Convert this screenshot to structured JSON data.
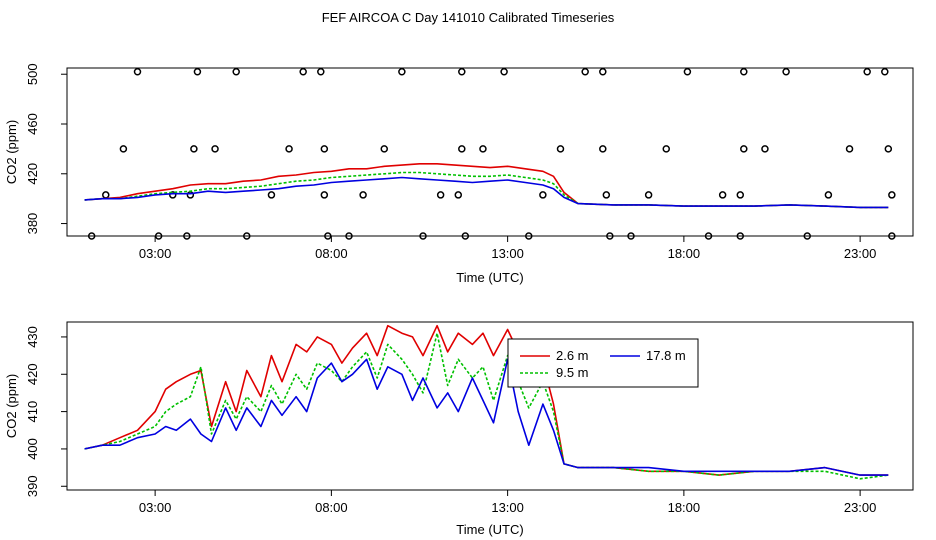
{
  "title": "FEF AIRCOA C  Day 141010  Calibrated Timeseries",
  "colors": {
    "s1": "#e00000",
    "s2": "#00c000",
    "s3": "#0000e0",
    "axis": "#000000",
    "marker": "#000000"
  },
  "chart_data": [
    {
      "type": "line",
      "xlabel": "Time (UTC)",
      "ylabel": "CO2 (ppm)",
      "xlim": [
        0.5,
        24.5
      ],
      "ylim": [
        370,
        505
      ],
      "x_ticks": [
        3,
        8,
        13,
        18,
        23
      ],
      "x_tick_labels": [
        "03:00",
        "08:00",
        "13:00",
        "18:00",
        "23:00"
      ],
      "y_ticks": [
        380,
        420,
        460,
        500
      ],
      "y_tick_labels": [
        "380",
        "420",
        "460",
        "500"
      ],
      "series": [
        {
          "name": "2.6 m",
          "color": "#e00000",
          "x": [
            1,
            1.5,
            2,
            2.5,
            3,
            3.5,
            4,
            4.5,
            5,
            5.5,
            6,
            6.5,
            7,
            7.5,
            8,
            8.5,
            9,
            9.5,
            10,
            10.5,
            11,
            11.5,
            12,
            12.5,
            13,
            13.5,
            14,
            14.3,
            14.6,
            15,
            16,
            17,
            18,
            19,
            20,
            21,
            22,
            23,
            23.8
          ],
          "y": [
            399,
            400,
            401,
            404,
            406,
            408,
            411,
            412,
            412,
            414,
            415,
            418,
            419,
            421,
            422,
            424,
            424,
            426,
            427,
            428,
            428,
            427,
            426,
            425,
            426,
            424,
            422,
            418,
            405,
            396,
            395,
            395,
            394,
            394,
            394,
            395,
            394,
            393,
            393
          ]
        },
        {
          "name": "9.5 m",
          "color": "#00c000",
          "x": [
            1,
            1.5,
            2,
            2.5,
            3,
            3.5,
            4,
            4.5,
            5,
            5.5,
            6,
            6.5,
            7,
            7.5,
            8,
            8.5,
            9,
            9.5,
            10,
            10.5,
            11,
            11.5,
            12,
            12.5,
            13,
            13.5,
            14,
            14.3,
            14.6,
            15,
            16,
            17,
            18,
            19,
            20,
            21,
            22,
            23,
            23.8
          ],
          "y": [
            399,
            400,
            400,
            402,
            404,
            405,
            406,
            408,
            408,
            409,
            410,
            412,
            414,
            415,
            417,
            418,
            419,
            420,
            421,
            421,
            420,
            419,
            418,
            418,
            419,
            417,
            415,
            412,
            403,
            396,
            395,
            395,
            394,
            394,
            394,
            395,
            394,
            393,
            393
          ]
        },
        {
          "name": "17.8 m",
          "color": "#0000e0",
          "x": [
            1,
            1.5,
            2,
            2.5,
            3,
            3.5,
            4,
            4.5,
            5,
            5.5,
            6,
            6.5,
            7,
            7.5,
            8,
            8.5,
            9,
            9.5,
            10,
            10.5,
            11,
            11.5,
            12,
            12.5,
            13,
            13.5,
            14,
            14.3,
            14.6,
            15,
            16,
            17,
            18,
            19,
            20,
            21,
            22,
            23,
            23.8
          ],
          "y": [
            399,
            400,
            400,
            401,
            403,
            404,
            404,
            406,
            405,
            406,
            407,
            408,
            410,
            411,
            413,
            414,
            415,
            416,
            417,
            416,
            415,
            414,
            413,
            414,
            415,
            413,
            411,
            408,
            401,
            396,
            395,
            395,
            394,
            394,
            394,
            395,
            394,
            393,
            393
          ]
        }
      ],
      "markers": [
        {
          "x": 1.2,
          "y": 370
        },
        {
          "x": 2.5,
          "y": 502
        },
        {
          "x": 2.1,
          "y": 440
        },
        {
          "x": 1.6,
          "y": 403
        },
        {
          "x": 3.1,
          "y": 370
        },
        {
          "x": 3.5,
          "y": 403
        },
        {
          "x": 4.2,
          "y": 502
        },
        {
          "x": 4.1,
          "y": 440
        },
        {
          "x": 4.0,
          "y": 403
        },
        {
          "x": 3.9,
          "y": 370
        },
        {
          "x": 4.7,
          "y": 440
        },
        {
          "x": 5.3,
          "y": 502
        },
        {
          "x": 5.6,
          "y": 370
        },
        {
          "x": 6.3,
          "y": 403
        },
        {
          "x": 6.8,
          "y": 440
        },
        {
          "x": 7.2,
          "y": 502
        },
        {
          "x": 7.7,
          "y": 502
        },
        {
          "x": 7.8,
          "y": 440
        },
        {
          "x": 7.8,
          "y": 403
        },
        {
          "x": 7.9,
          "y": 370
        },
        {
          "x": 8.5,
          "y": 370
        },
        {
          "x": 8.9,
          "y": 403
        },
        {
          "x": 9.5,
          "y": 440
        },
        {
          "x": 10.0,
          "y": 502
        },
        {
          "x": 10.6,
          "y": 370
        },
        {
          "x": 11.1,
          "y": 403
        },
        {
          "x": 11.6,
          "y": 403
        },
        {
          "x": 11.7,
          "y": 502
        },
        {
          "x": 11.7,
          "y": 440
        },
        {
          "x": 11.8,
          "y": 370
        },
        {
          "x": 12.3,
          "y": 440
        },
        {
          "x": 12.9,
          "y": 502
        },
        {
          "x": 13.6,
          "y": 370
        },
        {
          "x": 14.0,
          "y": 403
        },
        {
          "x": 14.5,
          "y": 440
        },
        {
          "x": 15.2,
          "y": 502
        },
        {
          "x": 15.7,
          "y": 502
        },
        {
          "x": 15.7,
          "y": 440
        },
        {
          "x": 15.8,
          "y": 403
        },
        {
          "x": 15.9,
          "y": 370
        },
        {
          "x": 16.5,
          "y": 370
        },
        {
          "x": 17.0,
          "y": 403
        },
        {
          "x": 17.5,
          "y": 440
        },
        {
          "x": 18.1,
          "y": 502
        },
        {
          "x": 18.7,
          "y": 370
        },
        {
          "x": 19.1,
          "y": 403
        },
        {
          "x": 19.6,
          "y": 403
        },
        {
          "x": 19.7,
          "y": 502
        },
        {
          "x": 19.7,
          "y": 440
        },
        {
          "x": 19.6,
          "y": 370
        },
        {
          "x": 20.3,
          "y": 440
        },
        {
          "x": 20.9,
          "y": 502
        },
        {
          "x": 21.5,
          "y": 370
        },
        {
          "x": 22.1,
          "y": 403
        },
        {
          "x": 22.7,
          "y": 440
        },
        {
          "x": 23.2,
          "y": 502
        },
        {
          "x": 23.7,
          "y": 502
        },
        {
          "x": 23.8,
          "y": 440
        },
        {
          "x": 23.9,
          "y": 403
        },
        {
          "x": 23.9,
          "y": 370
        }
      ]
    },
    {
      "type": "line",
      "xlabel": "Time (UTC)",
      "ylabel": "CO2 (ppm)",
      "xlim": [
        0.5,
        24.5
      ],
      "ylim": [
        389,
        434
      ],
      "x_ticks": [
        3,
        8,
        13,
        18,
        23
      ],
      "x_tick_labels": [
        "03:00",
        "08:00",
        "13:00",
        "18:00",
        "23:00"
      ],
      "y_ticks": [
        390,
        400,
        410,
        420,
        430
      ],
      "y_tick_labels": [
        "390",
        "400",
        "410",
        "420",
        "430"
      ],
      "legend": {
        "placement": "top-right",
        "entries": [
          "2.6 m",
          "17.8 m",
          "9.5 m"
        ]
      },
      "series": [
        {
          "name": "2.6 m",
          "color": "#e00000",
          "x": [
            1,
            1.5,
            2,
            2.5,
            3,
            3.3,
            3.6,
            4,
            4.3,
            4.6,
            5,
            5.3,
            5.6,
            6,
            6.3,
            6.6,
            7,
            7.3,
            7.6,
            8,
            8.3,
            8.6,
            9,
            9.3,
            9.6,
            10,
            10.3,
            10.6,
            11,
            11.3,
            11.6,
            12,
            12.3,
            12.6,
            13,
            13.3,
            13.6,
            14,
            14.3,
            14.6,
            15,
            16,
            17,
            18,
            19,
            20,
            21,
            22,
            23,
            23.8
          ],
          "y": [
            400,
            401,
            403,
            405,
            410,
            416,
            418,
            420,
            421,
            406,
            418,
            410,
            421,
            414,
            425,
            418,
            428,
            426,
            430,
            428,
            423,
            427,
            431,
            425,
            433,
            431,
            430,
            425,
            433,
            426,
            431,
            428,
            431,
            425,
            432,
            426,
            420,
            423,
            412,
            396,
            395,
            395,
            394,
            394,
            393,
            394,
            394,
            395,
            393,
            393
          ]
        },
        {
          "name": "9.5 m",
          "color": "#00c000",
          "x": [
            1,
            1.5,
            2,
            2.5,
            3,
            3.3,
            3.6,
            4,
            4.3,
            4.6,
            5,
            5.3,
            5.6,
            6,
            6.3,
            6.6,
            7,
            7.3,
            7.6,
            8,
            8.3,
            8.6,
            9,
            9.3,
            9.6,
            10,
            10.3,
            10.6,
            11,
            11.3,
            11.6,
            12,
            12.3,
            12.6,
            13,
            13.3,
            13.6,
            14,
            14.3,
            14.6,
            15,
            16,
            17,
            18,
            19,
            20,
            21,
            22,
            23,
            23.8
          ],
          "y": [
            400,
            401,
            402,
            404,
            406,
            410,
            412,
            414,
            422,
            404,
            413,
            408,
            414,
            410,
            417,
            412,
            420,
            416,
            423,
            421,
            418,
            422,
            426,
            419,
            428,
            424,
            420,
            415,
            431,
            417,
            424,
            419,
            422,
            413,
            425,
            418,
            411,
            418,
            410,
            396,
            395,
            395,
            394,
            394,
            393,
            394,
            394,
            394,
            392,
            393
          ]
        },
        {
          "name": "17.8 m",
          "color": "#0000e0",
          "x": [
            1,
            1.5,
            2,
            2.5,
            3,
            3.3,
            3.6,
            4,
            4.3,
            4.6,
            5,
            5.3,
            5.6,
            6,
            6.3,
            6.6,
            7,
            7.3,
            7.6,
            8,
            8.3,
            8.6,
            9,
            9.3,
            9.6,
            10,
            10.3,
            10.6,
            11,
            11.3,
            11.6,
            12,
            12.3,
            12.6,
            13,
            13.3,
            13.6,
            14,
            14.3,
            14.6,
            15,
            16,
            17,
            18,
            19,
            20,
            21,
            22,
            23,
            23.8
          ],
          "y": [
            400,
            401,
            401,
            403,
            404,
            406,
            405,
            408,
            404,
            402,
            411,
            405,
            411,
            406,
            413,
            409,
            414,
            410,
            419,
            423,
            418,
            420,
            424,
            416,
            422,
            420,
            413,
            419,
            411,
            415,
            410,
            419,
            413,
            407,
            424,
            410,
            401,
            412,
            405,
            396,
            395,
            395,
            395,
            394,
            394,
            394,
            394,
            395,
            393,
            393
          ]
        }
      ]
    }
  ]
}
